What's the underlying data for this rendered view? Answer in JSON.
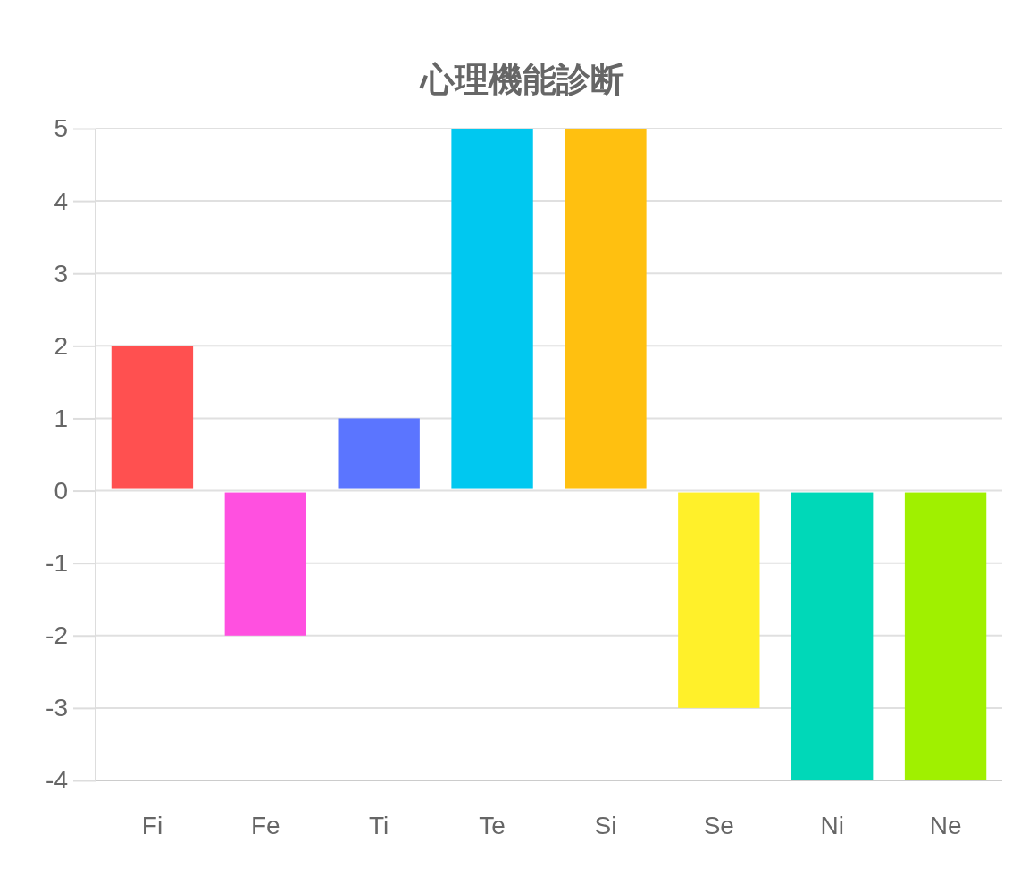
{
  "chart_data": {
    "type": "bar",
    "title": "心理機能診断",
    "categories": [
      "Fi",
      "Fe",
      "Ti",
      "Te",
      "Si",
      "Se",
      "Ni",
      "Ne"
    ],
    "values": [
      2,
      -2,
      1,
      5,
      5,
      -3,
      -4,
      -4
    ],
    "colors": [
      "#ff5050",
      "#ff50e0",
      "#5b75ff",
      "#00c8f0",
      "#ffc010",
      "#fff02a",
      "#00d8b8",
      "#a0f000"
    ],
    "ylim": [
      -4,
      5
    ],
    "yticks": [
      -4,
      -3,
      -2,
      -1,
      0,
      1,
      2,
      3,
      4,
      5
    ],
    "grid": "y"
  }
}
